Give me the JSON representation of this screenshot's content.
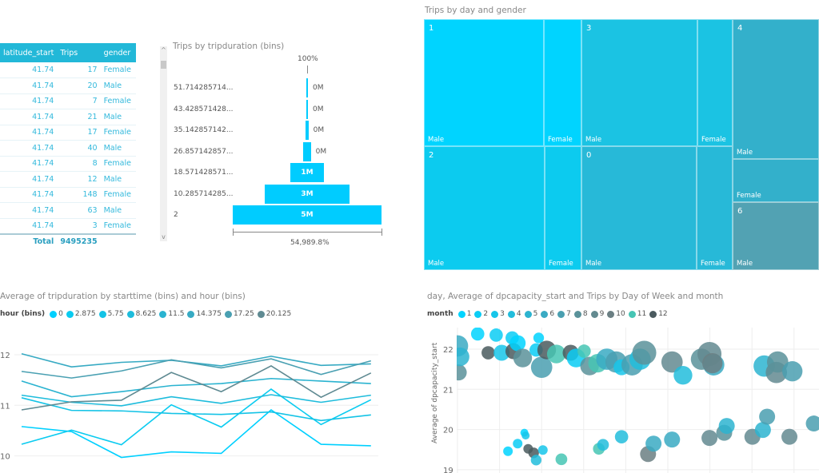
{
  "table": {
    "columns": [
      "latitude_start",
      "Trips",
      "gender"
    ],
    "rows": [
      [
        "41.74",
        "17",
        "Female"
      ],
      [
        "41.74",
        "20",
        "Male"
      ],
      [
        "41.74",
        "7",
        "Female"
      ],
      [
        "41.74",
        "21",
        "Male"
      ],
      [
        "41.74",
        "17",
        "Female"
      ],
      [
        "41.74",
        "40",
        "Male"
      ],
      [
        "41.74",
        "8",
        "Female"
      ],
      [
        "41.74",
        "12",
        "Male"
      ],
      [
        "41.74",
        "148",
        "Female"
      ],
      [
        "41.74",
        "63",
        "Male"
      ],
      [
        "41.74",
        "3",
        "Female"
      ]
    ],
    "total_label": "Total",
    "total_value": "9495235"
  },
  "funnel": {
    "title": "Trips by tripduration (bins)",
    "top_label": "100%",
    "bottom_label": "54,989.8%",
    "stages": [
      {
        "label": "51.714285714...",
        "value": "0M",
        "relative": 0.005
      },
      {
        "label": "43.428571428...",
        "value": "0M",
        "relative": 0.008
      },
      {
        "label": "35.142857142...",
        "value": "0M",
        "relative": 0.018
      },
      {
        "label": "26.857142857...",
        "value": "0M",
        "relative": 0.05
      },
      {
        "label": "18.571428571...",
        "value": "1M",
        "relative": 0.226
      },
      {
        "label": "10.285714285...",
        "value": "3M",
        "relative": 0.565
      },
      {
        "label": "2",
        "value": "5M",
        "relative": 1
      }
    ]
  },
  "treemap": {
    "title": "Trips by day and gender",
    "groups": [
      {
        "day": "1",
        "color": "#00d4ff",
        "male": "Male",
        "female": "Female"
      },
      {
        "day": "2",
        "color": "#0ccbef",
        "male": "Male",
        "female": "Female"
      },
      {
        "day": "3",
        "color": "#1bc3e3",
        "male": "Male",
        "female": "Female"
      },
      {
        "day": "0",
        "color": "#27b9d8",
        "male": "Male",
        "female": "Female"
      },
      {
        "day": "4",
        "color": "#33b0cb",
        "male": "Male",
        "female": "Female"
      },
      {
        "day": "6",
        "color": "#52a2b3",
        "male": "Male"
      }
    ]
  },
  "chart_data": [
    {
      "type": "line",
      "title": "Average of tripduration by starttime (bins) and hour (bins)",
      "legend_title": "hour (bins)",
      "legend_position": "top-left",
      "ylim": [
        9.9,
        12.1
      ],
      "yticks": [
        "10",
        "11",
        "12"
      ],
      "grid": true,
      "series": [
        {
          "name": "0",
          "color": "#00d0ff",
          "values": [
            10.58,
            10.48,
            9.97,
            10.08,
            10.05,
            10.91,
            10.23,
            10.2
          ]
        },
        {
          "name": "2.875",
          "color": "#0acbf0",
          "values": [
            10.23,
            10.51,
            10.22,
            11.01,
            10.57,
            11.32,
            10.62,
            11.11
          ]
        },
        {
          "name": "5.75",
          "color": "#14c3e6",
          "values": [
            11.15,
            10.9,
            10.89,
            10.84,
            10.82,
            10.87,
            10.7,
            10.81
          ]
        },
        {
          "name": "8.625",
          "color": "#1ebcdc",
          "values": [
            11.2,
            11.06,
            10.99,
            11.17,
            11.04,
            11.21,
            11.06,
            11.2
          ]
        },
        {
          "name": "11.5",
          "color": "#2ab3d0",
          "values": [
            11.48,
            11.17,
            11.27,
            11.39,
            11.43,
            11.53,
            11.48,
            11.43
          ]
        },
        {
          "name": "14.375",
          "color": "#37aac3",
          "values": [
            12.02,
            11.76,
            11.85,
            11.89,
            11.78,
            11.97,
            11.79,
            11.82
          ]
        },
        {
          "name": "17.25",
          "color": "#4aa0b2",
          "values": [
            11.67,
            11.54,
            11.68,
            11.9,
            11.74,
            11.92,
            11.61,
            11.88
          ]
        },
        {
          "name": "20.125",
          "color": "#5f8a92",
          "values": [
            10.91,
            11.07,
            11.1,
            11.65,
            11.27,
            11.78,
            11.16,
            11.64
          ]
        }
      ]
    },
    {
      "type": "scatter",
      "title": "day, Average of dpcapacity_start and Trips by Day of Week and month",
      "legend_title": "month",
      "legend_position": "top-left",
      "ylabel": "Average of dpcapacity_start",
      "ylim": [
        19,
        22.5
      ],
      "yticks": [
        "19",
        "20",
        "21",
        "22"
      ],
      "grid": true,
      "months": [
        {
          "name": "1",
          "color": "#00d4ff"
        },
        {
          "name": "2",
          "color": "#0bcdf5"
        },
        {
          "name": "3",
          "color": "#16c6ea"
        },
        {
          "name": "4",
          "color": "#22bddc"
        },
        {
          "name": "5",
          "color": "#2db4d0"
        },
        {
          "name": "6",
          "color": "#3aaac3"
        },
        {
          "name": "7",
          "color": "#4a9fb0"
        },
        {
          "name": "8",
          "color": "#5a929a"
        },
        {
          "name": "9",
          "color": "#638a90"
        },
        {
          "name": "10",
          "color": "#6b7f83"
        },
        {
          "name": "11",
          "color": "#47c5b4"
        },
        {
          "name": "12",
          "color": "#4a5a5e"
        }
      ],
      "points": [
        [
          0,
          22.08,
          40,
          6
        ],
        [
          0.03,
          21.42,
          30,
          8
        ],
        [
          0.06,
          21.81,
          35,
          5
        ],
        [
          0.48,
          22.38,
          25,
          1
        ],
        [
          0.73,
          21.91,
          25,
          12
        ],
        [
          0.92,
          22.35,
          25,
          2
        ],
        [
          1.05,
          21.91,
          30,
          3
        ],
        [
          1.3,
          22.28,
          25,
          2
        ],
        [
          1.33,
          21.95,
          30,
          12
        ],
        [
          1.43,
          22.15,
          30,
          1
        ],
        [
          1.55,
          21.78,
          35,
          8
        ],
        [
          1.93,
          22.28,
          20,
          1
        ],
        [
          1.87,
          21.98,
          25,
          2
        ],
        [
          2,
          21.55,
          40,
          7
        ],
        [
          2.12,
          21.98,
          35,
          12
        ],
        [
          2.35,
          21.88,
          35,
          11
        ],
        [
          2.69,
          21.91,
          30,
          12
        ],
        [
          2.82,
          21.78,
          35,
          2
        ],
        [
          3.01,
          21.95,
          25,
          11
        ],
        [
          3.14,
          21.58,
          35,
          8
        ],
        [
          3.33,
          21.65,
          35,
          11
        ],
        [
          3.55,
          21.75,
          40,
          6
        ],
        [
          3.77,
          21.68,
          40,
          7
        ],
        [
          3.9,
          21.55,
          30,
          3
        ],
        [
          4.15,
          21.61,
          40,
          7
        ],
        [
          4.34,
          21.75,
          40,
          4
        ],
        [
          4.44,
          21.91,
          45,
          8
        ],
        [
          5.1,
          21.68,
          40,
          9
        ],
        [
          5.36,
          21.35,
          35,
          4
        ],
        [
          5.8,
          21.75,
          40,
          8
        ],
        [
          5.99,
          21.88,
          45,
          9
        ],
        [
          6.09,
          21.61,
          40,
          6
        ],
        [
          6.06,
          21.65,
          38,
          10
        ],
        [
          7.29,
          21.58,
          40,
          5
        ],
        [
          7.58,
          21.42,
          40,
          9
        ],
        [
          7.61,
          21.68,
          40,
          8
        ],
        [
          7.96,
          21.45,
          38,
          7
        ],
        [
          1.2,
          19.46,
          18,
          1
        ],
        [
          1.43,
          19.65,
          18,
          2
        ],
        [
          1.59,
          19.92,
          15,
          1
        ],
        [
          1.62,
          19.85,
          15,
          3
        ],
        [
          1.68,
          19.52,
          18,
          12
        ],
        [
          1.81,
          19.42,
          20,
          12
        ],
        [
          1.87,
          19.24,
          20,
          4
        ],
        [
          2.03,
          19.49,
          18,
          3
        ],
        [
          2.47,
          19.26,
          22,
          11
        ],
        [
          3.36,
          19.52,
          22,
          11
        ],
        [
          3.46,
          19.62,
          22,
          4
        ],
        [
          3.9,
          19.82,
          25,
          4
        ],
        [
          4.53,
          19.39,
          30,
          10
        ],
        [
          4.66,
          19.65,
          30,
          6
        ],
        [
          5.1,
          19.75,
          30,
          6
        ],
        [
          5.99,
          19.79,
          30,
          9
        ],
        [
          6.34,
          19.92,
          30,
          8
        ],
        [
          6.4,
          20.09,
          30,
          5
        ],
        [
          7.01,
          19.82,
          30,
          9
        ],
        [
          7.26,
          19.99,
          30,
          5
        ],
        [
          7.36,
          20.32,
          30,
          7
        ],
        [
          7.89,
          19.82,
          30,
          9
        ],
        [
          8.47,
          20.15,
          30,
          7
        ]
      ]
    }
  ]
}
